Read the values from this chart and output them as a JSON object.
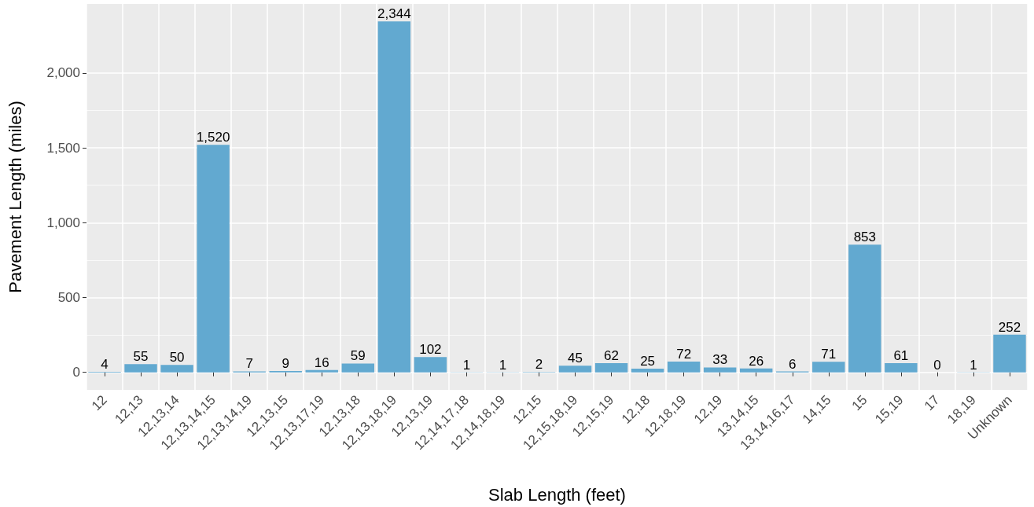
{
  "chart_data": {
    "type": "bar",
    "xlabel": "Slab Length (feet)",
    "ylabel": "Pavement Length (miles)",
    "categories": [
      "12",
      "12,13",
      "12,13,14",
      "12,13,14,15",
      "12,13,14,19",
      "12,13,15",
      "12,13,17,19",
      "12,13,18",
      "12,13,18,19",
      "12,13,19",
      "12,14,17,18",
      "12,14,18,19",
      "12,15",
      "12,15,18,19",
      "12,15,19",
      "12,18",
      "12,18,19",
      "12,19",
      "13,14,15",
      "13,14,16,17",
      "14,15",
      "15",
      "15,19",
      "17",
      "18,19",
      "Unknown"
    ],
    "values": [
      4,
      55,
      50,
      1520,
      7,
      9,
      16,
      59,
      2344,
      102,
      1,
      1,
      2,
      45,
      62,
      25,
      72,
      33,
      26,
      6,
      71,
      853,
      61,
      0,
      1,
      252
    ],
    "value_labels": [
      "4",
      "55",
      "50",
      "1,520",
      "7",
      "9",
      "16",
      "59",
      "2,344",
      "102",
      "1",
      "1",
      "2",
      "45",
      "62",
      "25",
      "72",
      "33",
      "26",
      "6",
      "71",
      "853",
      "61",
      "0",
      "1",
      "252"
    ],
    "color": "#62a9d0",
    "ylim": [
      -117,
      2461
    ],
    "yticks": [
      {
        "value": 0,
        "label": "0"
      },
      {
        "value": 500,
        "label": "500"
      },
      {
        "value": 1000,
        "label": "1,000"
      },
      {
        "value": 1500,
        "label": "1,500"
      },
      {
        "value": 2000,
        "label": "2,000"
      }
    ],
    "grid": true
  }
}
